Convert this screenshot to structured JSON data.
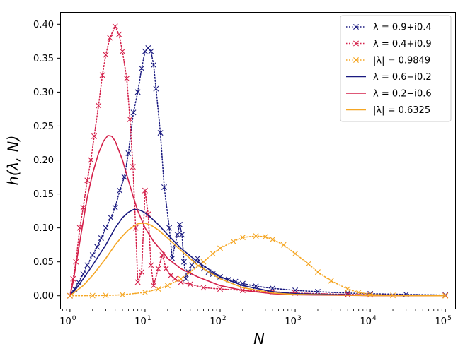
{
  "chart_data": {
    "type": "line",
    "xscale": "log",
    "xlim": [
      0.74,
      135000
    ],
    "ylim": [
      -0.019,
      0.418
    ],
    "xlabel": "N",
    "ylabel": "h(λ, N)",
    "x_ticks": [
      {
        "value": 1,
        "base": "10",
        "exp": "0"
      },
      {
        "value": 10,
        "base": "10",
        "exp": "1"
      },
      {
        "value": 100,
        "base": "10",
        "exp": "2"
      },
      {
        "value": 1000,
        "base": "10",
        "exp": "3"
      },
      {
        "value": 10000,
        "base": "10",
        "exp": "4"
      },
      {
        "value": 100000,
        "base": "10",
        "exp": "5"
      }
    ],
    "y_ticks": [
      {
        "value": 0.0,
        "label": "0.00"
      },
      {
        "value": 0.05,
        "label": "0.05"
      },
      {
        "value": 0.1,
        "label": "0.10"
      },
      {
        "value": 0.15,
        "label": "0.15"
      },
      {
        "value": 0.2,
        "label": "0.20"
      },
      {
        "value": 0.25,
        "label": "0.25"
      },
      {
        "value": 0.3,
        "label": "0.30"
      },
      {
        "value": 0.35,
        "label": "0.35"
      },
      {
        "value": 0.4,
        "label": "0.40"
      }
    ],
    "legend_position": "top-right",
    "series": [
      {
        "name": "λ = 0.9+i0.4",
        "style": "dotted-x",
        "color": "#1a1a80",
        "points": [
          [
            1,
            0
          ],
          [
            1.15,
            0.01
          ],
          [
            1.3,
            0.02
          ],
          [
            1.5,
            0.032
          ],
          [
            1.7,
            0.045
          ],
          [
            2,
            0.06
          ],
          [
            2.3,
            0.072
          ],
          [
            2.6,
            0.085
          ],
          [
            3,
            0.1
          ],
          [
            3.5,
            0.115
          ],
          [
            4,
            0.13
          ],
          [
            4.6,
            0.155
          ],
          [
            5.3,
            0.175
          ],
          [
            6,
            0.21
          ],
          [
            7,
            0.27
          ],
          [
            8,
            0.3
          ],
          [
            9,
            0.335
          ],
          [
            10,
            0.36
          ],
          [
            11,
            0.365
          ],
          [
            12,
            0.36
          ],
          [
            13,
            0.34
          ],
          [
            14,
            0.305
          ],
          [
            16,
            0.24
          ],
          [
            18,
            0.16
          ],
          [
            21,
            0.1
          ],
          [
            23,
            0.055
          ],
          [
            25,
            0.075
          ],
          [
            27,
            0.09
          ],
          [
            29,
            0.105
          ],
          [
            31,
            0.09
          ],
          [
            33,
            0.05
          ],
          [
            35,
            0.025
          ],
          [
            38,
            0.035
          ],
          [
            42,
            0.045
          ],
          [
            46,
            0.05
          ],
          [
            50,
            0.055
          ],
          [
            55,
            0.047
          ],
          [
            60,
            0.04
          ],
          [
            70,
            0.035
          ],
          [
            80,
            0.032
          ],
          [
            100,
            0.028
          ],
          [
            130,
            0.024
          ],
          [
            160,
            0.021
          ],
          [
            200,
            0.018
          ],
          [
            300,
            0.014
          ],
          [
            500,
            0.011
          ],
          [
            1000,
            0.008
          ],
          [
            2000,
            0.006
          ],
          [
            5000,
            0.004
          ],
          [
            10000,
            0.003
          ],
          [
            30000,
            0.002
          ],
          [
            100000,
            0.001
          ]
        ]
      },
      {
        "name": "λ = 0.4+i0.9",
        "style": "dotted-x",
        "color": "#d4204a",
        "points": [
          [
            1,
            0
          ],
          [
            1.1,
            0.025
          ],
          [
            1.2,
            0.05
          ],
          [
            1.35,
            0.1
          ],
          [
            1.5,
            0.13
          ],
          [
            1.7,
            0.17
          ],
          [
            1.9,
            0.2
          ],
          [
            2.1,
            0.235
          ],
          [
            2.4,
            0.28
          ],
          [
            2.7,
            0.325
          ],
          [
            3,
            0.355
          ],
          [
            3.4,
            0.38
          ],
          [
            4,
            0.397
          ],
          [
            4.5,
            0.385
          ],
          [
            5,
            0.36
          ],
          [
            5.7,
            0.32
          ],
          [
            6.3,
            0.26
          ],
          [
            6.9,
            0.19
          ],
          [
            7.5,
            0.1
          ],
          [
            8,
            0.02
          ],
          [
            9,
            0.035
          ],
          [
            10,
            0.155
          ],
          [
            11,
            0.12
          ],
          [
            12,
            0.045
          ],
          [
            13,
            0.015
          ],
          [
            15,
            0.04
          ],
          [
            17,
            0.06
          ],
          [
            19,
            0.04
          ],
          [
            22,
            0.03
          ],
          [
            25,
            0.025
          ],
          [
            30,
            0.02
          ],
          [
            40,
            0.017
          ],
          [
            60,
            0.012
          ],
          [
            100,
            0.01
          ],
          [
            200,
            0.008
          ],
          [
            500,
            0.006
          ],
          [
            1000,
            0.004
          ],
          [
            5000,
            0.002
          ],
          [
            10000,
            0.0015
          ],
          [
            100000,
            0.0005
          ]
        ]
      },
      {
        "name": "|λ| = 0.9849",
        "style": "dotted-x",
        "color": "#f5a623",
        "points": [
          [
            1,
            0
          ],
          [
            2,
            0.0002
          ],
          [
            3,
            0.0005
          ],
          [
            5,
            0.0015
          ],
          [
            10,
            0.005
          ],
          [
            15,
            0.01
          ],
          [
            20,
            0.015
          ],
          [
            30,
            0.025
          ],
          [
            40,
            0.035
          ],
          [
            60,
            0.05
          ],
          [
            80,
            0.062
          ],
          [
            100,
            0.07
          ],
          [
            150,
            0.08
          ],
          [
            200,
            0.086
          ],
          [
            300,
            0.088
          ],
          [
            400,
            0.087
          ],
          [
            500,
            0.083
          ],
          [
            700,
            0.075
          ],
          [
            1000,
            0.062
          ],
          [
            1500,
            0.047
          ],
          [
            2000,
            0.035
          ],
          [
            3000,
            0.022
          ],
          [
            5000,
            0.01
          ],
          [
            7000,
            0.005
          ],
          [
            10000,
            0.002
          ],
          [
            20000,
            0.0005
          ],
          [
            100000,
            0
          ]
        ]
      },
      {
        "name": "λ = 0.6−i0.2",
        "style": "solid",
        "color": "#1a1a80",
        "points": [
          [
            1,
            0
          ],
          [
            1.2,
            0.01
          ],
          [
            1.5,
            0.025
          ],
          [
            2,
            0.045
          ],
          [
            3,
            0.075
          ],
          [
            4,
            0.1
          ],
          [
            5,
            0.115
          ],
          [
            6,
            0.123
          ],
          [
            7,
            0.127
          ],
          [
            8,
            0.127
          ],
          [
            9,
            0.125
          ],
          [
            10,
            0.122
          ],
          [
            12,
            0.115
          ],
          [
            15,
            0.105
          ],
          [
            20,
            0.09
          ],
          [
            30,
            0.07
          ],
          [
            50,
            0.05
          ],
          [
            100,
            0.028
          ],
          [
            200,
            0.015
          ],
          [
            500,
            0.006
          ],
          [
            1000,
            0.003
          ],
          [
            10000,
            0.0005
          ],
          [
            100000,
            0
          ]
        ]
      },
      {
        "name": "λ = 0.2−i0.6",
        "style": "solid",
        "color": "#d4204a",
        "points": [
          [
            1,
            0
          ],
          [
            1.1,
            0.02
          ],
          [
            1.2,
            0.045
          ],
          [
            1.4,
            0.09
          ],
          [
            1.7,
            0.145
          ],
          [
            2,
            0.18
          ],
          [
            2.4,
            0.21
          ],
          [
            2.8,
            0.228
          ],
          [
            3.2,
            0.236
          ],
          [
            3.6,
            0.235
          ],
          [
            4,
            0.228
          ],
          [
            5,
            0.2
          ],
          [
            6,
            0.17
          ],
          [
            7,
            0.145
          ],
          [
            8,
            0.125
          ],
          [
            10,
            0.1
          ],
          [
            13,
            0.08
          ],
          [
            17,
            0.065
          ],
          [
            20,
            0.055
          ],
          [
            30,
            0.04
          ],
          [
            50,
            0.028
          ],
          [
            100,
            0.015
          ],
          [
            200,
            0.008
          ],
          [
            500,
            0.003
          ],
          [
            1000,
            0.0015
          ],
          [
            10000,
            0.0002
          ],
          [
            100000,
            0
          ]
        ]
      },
      {
        "name": "|λ| = 0.6325",
        "style": "solid",
        "color": "#f5a623",
        "points": [
          [
            1,
            0
          ],
          [
            1.5,
            0.015
          ],
          [
            2,
            0.03
          ],
          [
            3,
            0.055
          ],
          [
            4,
            0.075
          ],
          [
            5,
            0.088
          ],
          [
            6,
            0.097
          ],
          [
            7,
            0.102
          ],
          [
            8,
            0.106
          ],
          [
            9,
            0.107
          ],
          [
            10,
            0.107
          ],
          [
            12,
            0.104
          ],
          [
            15,
            0.097
          ],
          [
            20,
            0.085
          ],
          [
            30,
            0.067
          ],
          [
            50,
            0.045
          ],
          [
            100,
            0.025
          ],
          [
            200,
            0.012
          ],
          [
            500,
            0.004
          ],
          [
            1000,
            0.002
          ],
          [
            10000,
            0.0003
          ],
          [
            100000,
            0
          ]
        ]
      }
    ]
  }
}
